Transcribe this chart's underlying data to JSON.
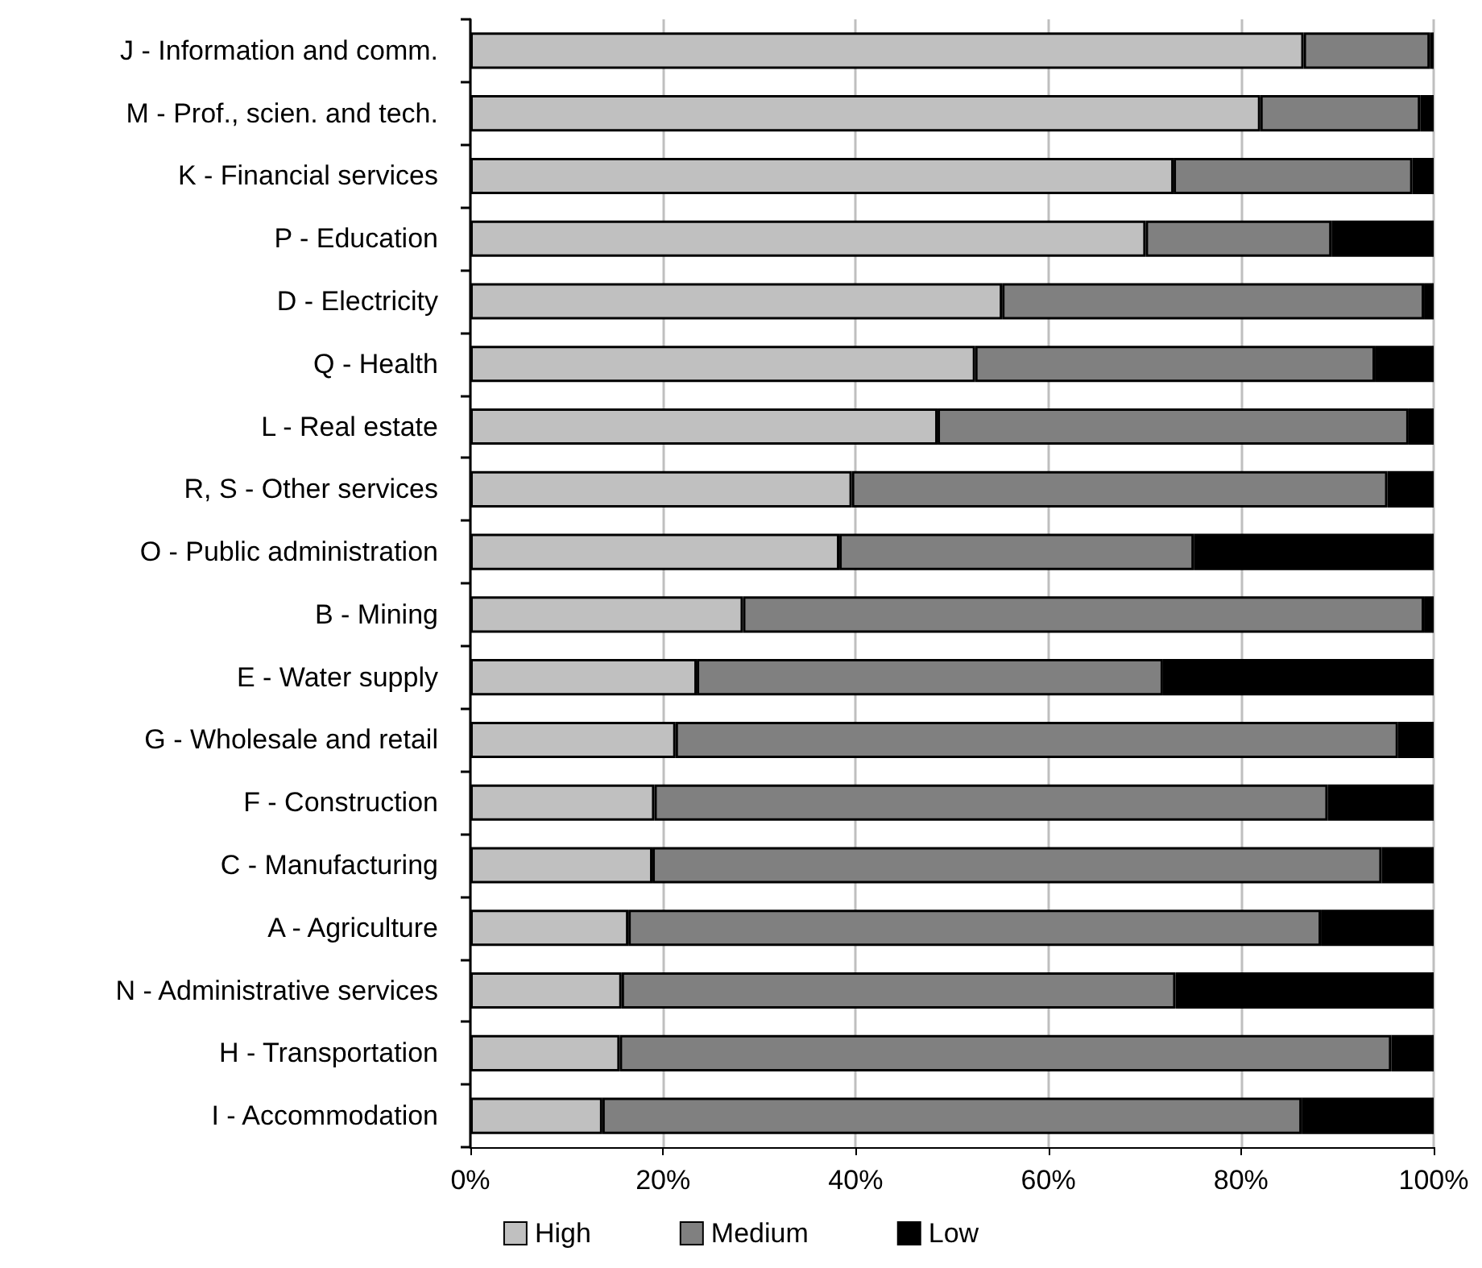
{
  "chart_data": {
    "type": "bar",
    "orientation": "horizontal",
    "stacked": true,
    "categories": [
      "J - Information and comm.",
      "M - Prof., scien. and tech.",
      "K - Financial services",
      "P - Education",
      "D - Electricity",
      "Q - Health",
      "L - Real estate",
      "R, S - Other services",
      "O - Public administration",
      "B - Mining",
      "E - Water supply",
      "G - Wholesale and retail",
      "F - Construction",
      "C - Manufacturing",
      "A - Agriculture",
      "N - Administrative services",
      "H - Transportation",
      "I - Accommodation"
    ],
    "series": [
      {
        "name": "High",
        "color": "#c0c0c0",
        "values": [
          86.5,
          82.0,
          73.0,
          70.1,
          55.2,
          52.4,
          48.5,
          39.6,
          38.3,
          28.3,
          23.5,
          21.3,
          19.1,
          18.9,
          16.4,
          15.7,
          15.5,
          13.7
        ]
      },
      {
        "name": "Medium",
        "color": "#808080",
        "values": [
          13.1,
          16.6,
          24.8,
          19.3,
          43.8,
          41.5,
          48.9,
          55.6,
          36.8,
          70.7,
          48.4,
          75.0,
          69.9,
          75.7,
          71.9,
          57.5,
          80.1,
          72.6
        ]
      },
      {
        "name": "Low",
        "color": "#000000",
        "values": [
          0.4,
          1.4,
          2.2,
          10.6,
          1.0,
          6.1,
          2.6,
          4.8,
          24.9,
          1.0,
          28.1,
          3.7,
          11.0,
          5.4,
          11.7,
          26.8,
          4.4,
          13.7
        ]
      }
    ],
    "xlim": [
      0,
      100
    ],
    "xticks": [
      {
        "value": 0,
        "label": "0%"
      },
      {
        "value": 20,
        "label": "20%"
      },
      {
        "value": 40,
        "label": "40%"
      },
      {
        "value": 60,
        "label": "60%"
      },
      {
        "value": 80,
        "label": "80%"
      },
      {
        "value": 100,
        "label": "100%"
      }
    ],
    "grid": "x",
    "legend": "bottom"
  }
}
